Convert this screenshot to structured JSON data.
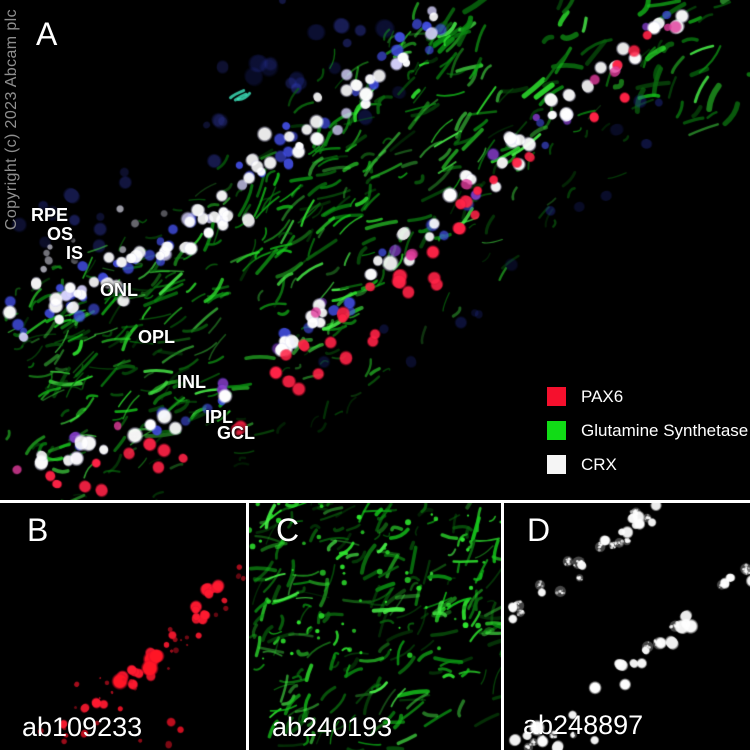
{
  "copyright": "Copyright (c) 2023 Abcam plc",
  "palette": {
    "background": "#000000",
    "pax6_red": "#f5102d",
    "gs_green": "#11dc16",
    "crx_white": "#ffffff",
    "nuclei_blue": "#3646d8",
    "divider_white": "#ffffff",
    "copyright_gray": "#8f8f8f"
  },
  "panels": {
    "a": {
      "label": "A",
      "layers": [
        "RPE",
        "OS",
        "IS",
        "ONL",
        "OPL",
        "INL",
        "IPL",
        "GCL"
      ],
      "legend": [
        {
          "label": "PAX6",
          "color": "#f5102d"
        },
        {
          "label": "Glutamine Synthetase",
          "color": "#11dc16"
        },
        {
          "label": "CRX",
          "color": "#f5f5f5"
        }
      ]
    },
    "b": {
      "label": "B",
      "code": "ab109233"
    },
    "c": {
      "label": "C",
      "code": "ab240193"
    },
    "d": {
      "label": "D",
      "code": "ab248897"
    }
  }
}
